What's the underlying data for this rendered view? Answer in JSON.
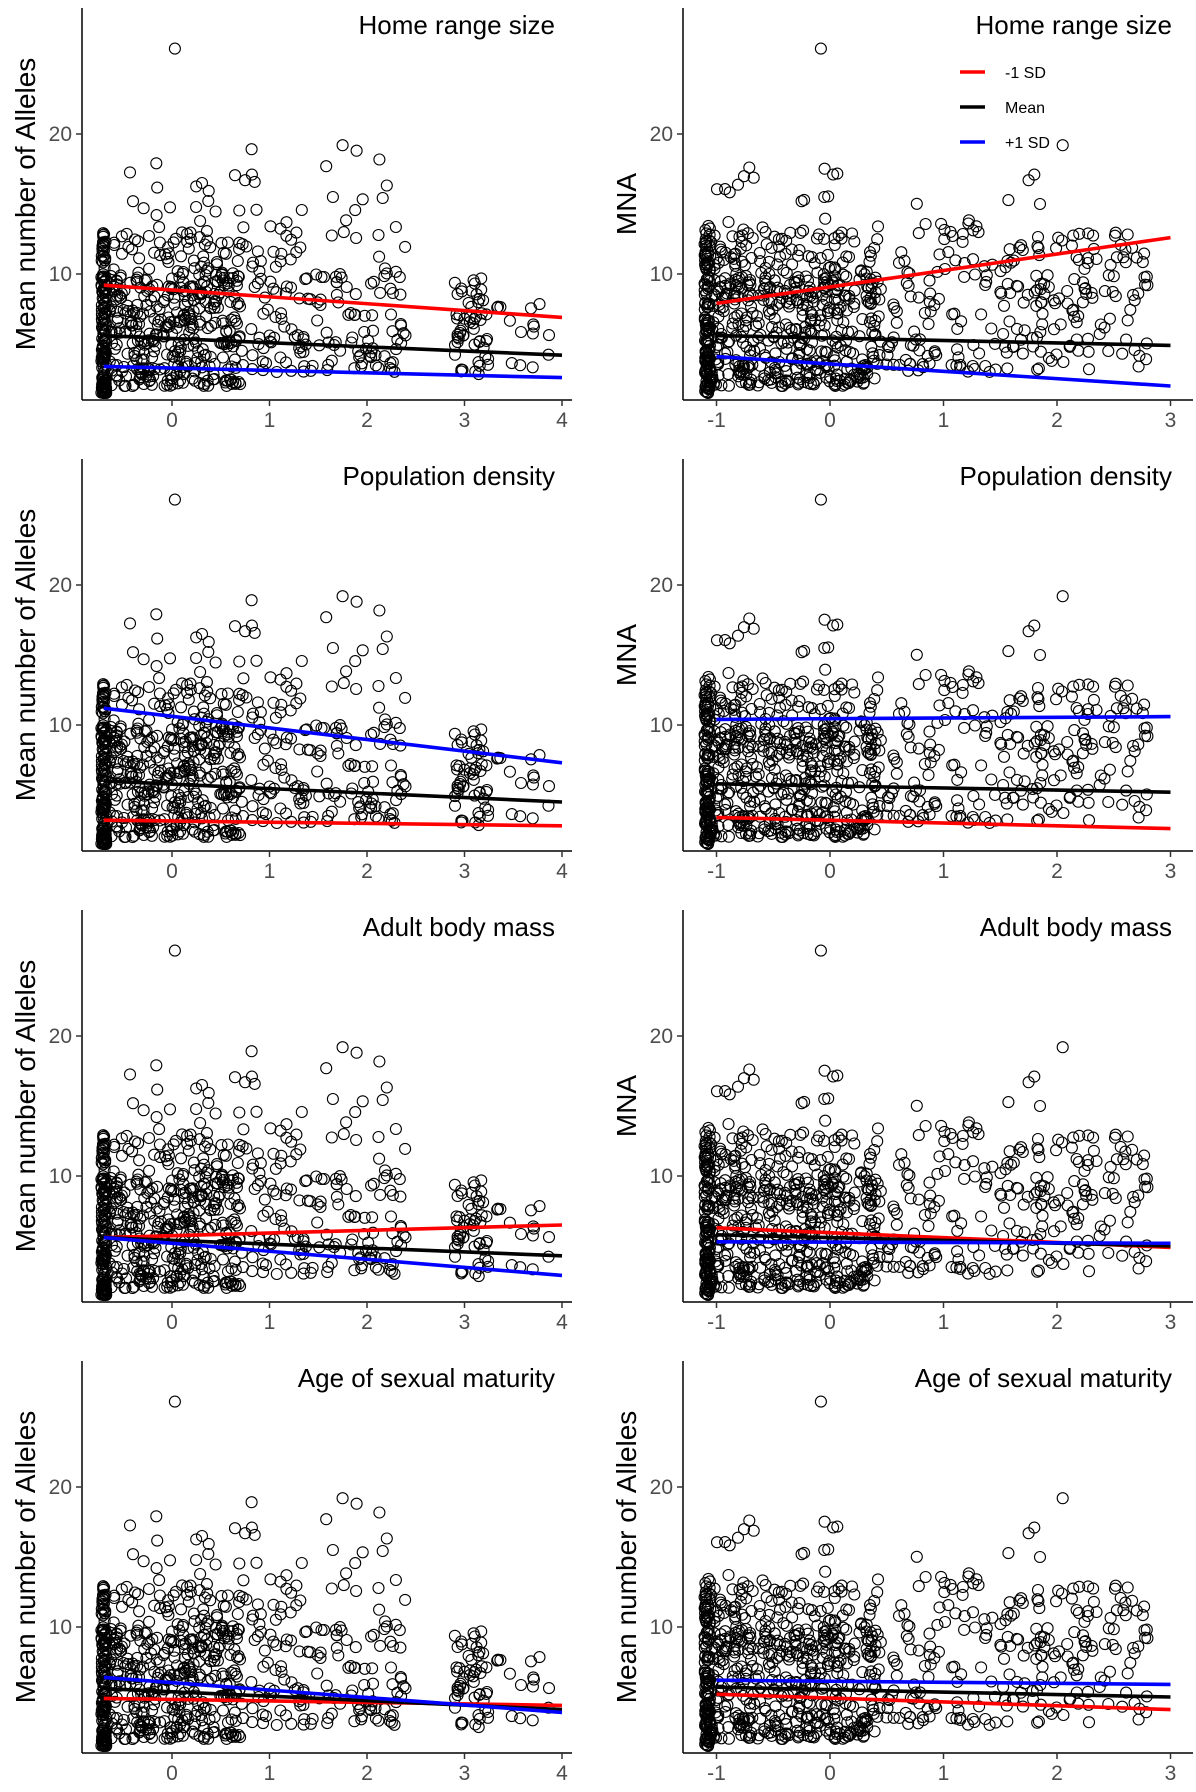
{
  "chart_data": [
    {
      "type": "scatter",
      "title": "Home range size",
      "ylabel": "Mean number of Alleles",
      "xlabel": "",
      "xlim": [
        -0.75,
        4.05
      ],
      "ylim": [
        1,
        27
      ],
      "xticks": [
        0,
        1,
        2,
        3,
        4
      ],
      "yticks": [
        10,
        20
      ],
      "series": [
        {
          "name": "-1 SD",
          "color": "#ff0000",
          "x": [
            -0.7,
            4.0
          ],
          "y": [
            9.2,
            6.9
          ]
        },
        {
          "name": "Mean",
          "color": "#000000",
          "x": [
            -0.7,
            4.0
          ],
          "y": [
            5.6,
            4.2
          ]
        },
        {
          "name": "+1 SD",
          "color": "#0000ff",
          "x": [
            -0.7,
            4.0
          ],
          "y": [
            3.4,
            2.6
          ]
        }
      ]
    },
    {
      "type": "scatter",
      "title": "Home range size",
      "ylabel": "MNA",
      "xlabel": "",
      "xlim": [
        -1.2,
        3.2
      ],
      "ylim": [
        1,
        27
      ],
      "xticks": [
        -1,
        0,
        1,
        2,
        3
      ],
      "yticks": [
        10,
        20
      ],
      "legend": {
        "position": "top-right",
        "entries": [
          "-1 SD",
          "Mean",
          "+1 SD"
        ]
      },
      "series": [
        {
          "name": "-1 SD",
          "color": "#ff0000",
          "x": [
            -1.0,
            3.0
          ],
          "y": [
            7.9,
            12.6
          ]
        },
        {
          "name": "Mean",
          "color": "#000000",
          "x": [
            -1.0,
            3.0
          ],
          "y": [
            5.6,
            4.9
          ]
        },
        {
          "name": "+1 SD",
          "color": "#0000ff",
          "x": [
            -1.0,
            3.0
          ],
          "y": [
            4.1,
            2.0
          ]
        }
      ]
    },
    {
      "type": "scatter",
      "title": "Population density",
      "ylabel": "Mean number of Alleles",
      "xlabel": "",
      "xlim": [
        -0.75,
        4.05
      ],
      "ylim": [
        1,
        27
      ],
      "xticks": [
        0,
        1,
        2,
        3,
        4
      ],
      "yticks": [
        10,
        20
      ],
      "series": [
        {
          "name": "-1 SD",
          "color": "#ff0000",
          "x": [
            -0.7,
            4.0
          ],
          "y": [
            3.2,
            2.8
          ]
        },
        {
          "name": "Mean",
          "color": "#000000",
          "x": [
            -0.7,
            4.0
          ],
          "y": [
            6.0,
            4.5
          ]
        },
        {
          "name": "+1 SD",
          "color": "#0000ff",
          "x": [
            -0.7,
            4.0
          ],
          "y": [
            11.2,
            7.3
          ]
        }
      ]
    },
    {
      "type": "scatter",
      "title": "Population density",
      "ylabel": "MNA",
      "xlabel": "",
      "xlim": [
        -1.2,
        3.2
      ],
      "ylim": [
        1,
        27
      ],
      "xticks": [
        -1,
        0,
        1,
        2,
        3
      ],
      "yticks": [
        10,
        20
      ],
      "series": [
        {
          "name": "-1 SD",
          "color": "#ff0000",
          "x": [
            -1.0,
            3.0
          ],
          "y": [
            3.4,
            2.6
          ]
        },
        {
          "name": "Mean",
          "color": "#000000",
          "x": [
            -1.0,
            3.0
          ],
          "y": [
            5.8,
            5.2
          ]
        },
        {
          "name": "+1 SD",
          "color": "#0000ff",
          "x": [
            -1.0,
            3.0
          ],
          "y": [
            10.4,
            10.6
          ]
        }
      ]
    },
    {
      "type": "scatter",
      "title": "Adult body mass",
      "ylabel": "Mean number of Alleles",
      "xlabel": "",
      "xlim": [
        -0.75,
        4.05
      ],
      "ylim": [
        1,
        27
      ],
      "xticks": [
        0,
        1,
        2,
        3,
        4
      ],
      "yticks": [
        10,
        20
      ],
      "series": [
        {
          "name": "-1 SD",
          "color": "#ff0000",
          "x": [
            -0.7,
            4.0
          ],
          "y": [
            5.6,
            6.5
          ]
        },
        {
          "name": "Mean",
          "color": "#000000",
          "x": [
            -0.7,
            4.0
          ],
          "y": [
            5.6,
            4.3
          ]
        },
        {
          "name": "+1 SD",
          "color": "#0000ff",
          "x": [
            -0.7,
            4.0
          ],
          "y": [
            5.6,
            2.9
          ]
        }
      ]
    },
    {
      "type": "scatter",
      "title": "Adult body mass",
      "ylabel": "MNA",
      "xlabel": "",
      "xlim": [
        -1.2,
        3.2
      ],
      "ylim": [
        1,
        27
      ],
      "xticks": [
        -1,
        0,
        1,
        2,
        3
      ],
      "yticks": [
        10,
        20
      ],
      "series": [
        {
          "name": "-1 SD",
          "color": "#ff0000",
          "x": [
            -1.0,
            3.0
          ],
          "y": [
            6.3,
            4.9
          ]
        },
        {
          "name": "Mean",
          "color": "#000000",
          "x": [
            -1.0,
            3.0
          ],
          "y": [
            5.8,
            5.0
          ]
        },
        {
          "name": "+1 SD",
          "color": "#0000ff",
          "x": [
            -1.0,
            3.0
          ],
          "y": [
            5.3,
            5.2
          ]
        }
      ]
    },
    {
      "type": "scatter",
      "title": "Age of sexual maturity",
      "ylabel": "Mean number of Alleles",
      "xlabel": "",
      "xlim": [
        -0.75,
        4.05
      ],
      "ylim": [
        1,
        27
      ],
      "xticks": [
        0,
        1,
        2,
        3,
        4
      ],
      "yticks": [
        10,
        20
      ],
      "series": [
        {
          "name": "-1 SD",
          "color": "#ff0000",
          "x": [
            -0.7,
            4.0
          ],
          "y": [
            4.9,
            4.4
          ]
        },
        {
          "name": "Mean",
          "color": "#000000",
          "x": [
            -0.7,
            4.0
          ],
          "y": [
            5.6,
            4.1
          ]
        },
        {
          "name": "+1 SD",
          "color": "#0000ff",
          "x": [
            -0.7,
            4.0
          ],
          "y": [
            6.4,
            3.9
          ]
        }
      ]
    },
    {
      "type": "scatter",
      "title": "Age of sexual maturity",
      "ylabel": "Mean number of Alleles",
      "xlabel": "",
      "xlim": [
        -1.2,
        3.2
      ],
      "ylim": [
        1,
        27
      ],
      "xticks": [
        -1,
        0,
        1,
        2,
        3
      ],
      "yticks": [
        10,
        20
      ],
      "series": [
        {
          "name": "-1 SD",
          "color": "#ff0000",
          "x": [
            -1.0,
            3.0
          ],
          "y": [
            5.2,
            4.1
          ]
        },
        {
          "name": "Mean",
          "color": "#000000",
          "x": [
            -1.0,
            3.0
          ],
          "y": [
            5.7,
            5.0
          ]
        },
        {
          "name": "+1 SD",
          "color": "#0000ff",
          "x": [
            -1.0,
            3.0
          ],
          "y": [
            6.2,
            5.9
          ]
        }
      ]
    }
  ]
}
